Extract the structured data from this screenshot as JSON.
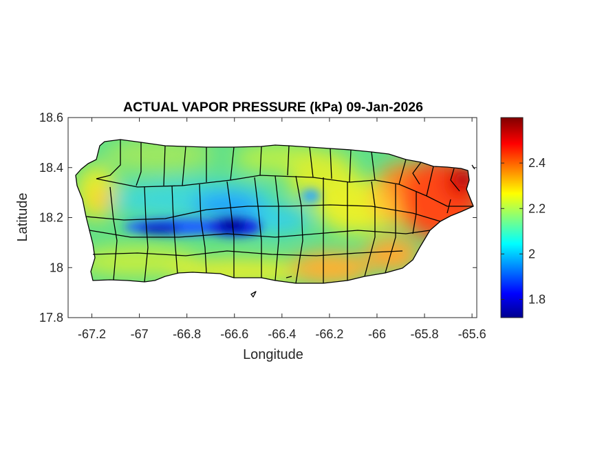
{
  "title": "ACTUAL VAPOR PRESSURE (kPa) 09-Jan-2026",
  "xlabel": "Longitude",
  "ylabel": "Latitude",
  "map_data": {
    "type": "filled-contour-map",
    "region": "Puerto Rico (municipality boundaries)",
    "colormap": "jet",
    "xlim": [
      -67.3,
      -65.58
    ],
    "ylim": [
      17.8,
      18.6
    ],
    "x_ticks": [
      "-67.2",
      "-67",
      "-66.8",
      "-66.6",
      "-66.4",
      "-66.2",
      "-66",
      "-65.8",
      "-65.6"
    ],
    "x_tick_values": [
      -67.2,
      -67,
      -66.8,
      -66.6,
      -66.4,
      -66.2,
      -66,
      -65.8,
      -65.6
    ],
    "y_ticks": [
      "17.8",
      "18",
      "18.2",
      "18.4",
      "18.6"
    ],
    "y_tick_values": [
      17.8,
      18.0,
      18.2,
      18.4,
      18.6
    ],
    "colorbar": {
      "range": [
        1.72,
        2.6
      ],
      "ticks": [
        "1.8",
        "2",
        "2.2",
        "2.4"
      ],
      "tick_values": [
        1.8,
        2.0,
        2.2,
        2.4
      ]
    },
    "field_features": [
      {
        "description": "minimum along central mountains",
        "lon": -66.62,
        "lat": 18.16,
        "value": 1.75
      },
      {
        "description": "low in west-central interior",
        "lon": -66.95,
        "lat": 18.15,
        "value": 1.85
      },
      {
        "description": "maximum on east coast",
        "lon": -65.7,
        "lat": 18.3,
        "value": 2.58
      },
      {
        "description": "high on southeast coast",
        "lon": -65.95,
        "lat": 18.0,
        "value": 2.4
      },
      {
        "description": "moderate on south coast",
        "lon": -66.3,
        "lat": 17.98,
        "value": 2.32
      }
    ]
  },
  "colors": {
    "axes_edge": "#262626",
    "boundaries": "#000000"
  }
}
